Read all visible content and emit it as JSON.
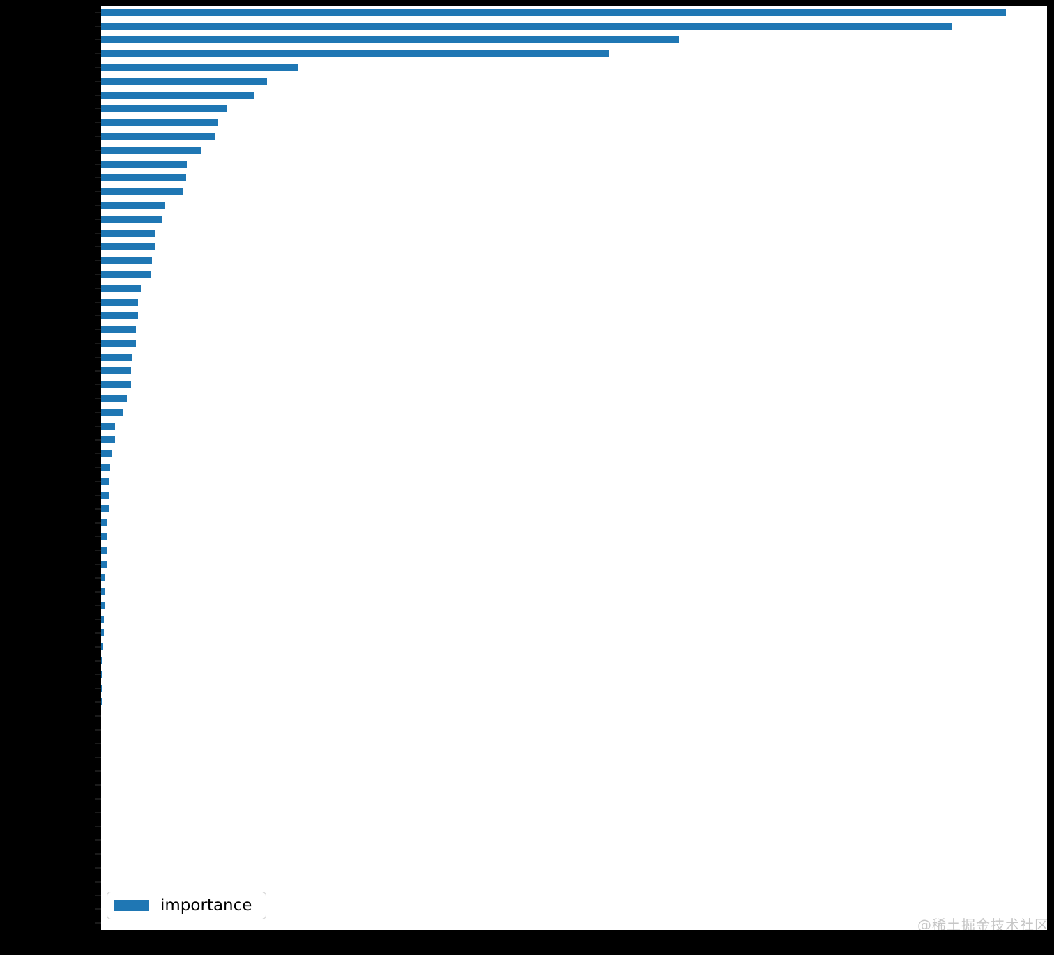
{
  "chart_data": {
    "type": "bar",
    "orientation": "horizontal",
    "title": "",
    "xlabel": "",
    "ylabel": "",
    "legend": [
      "importance"
    ],
    "legend_position": "lower left",
    "grid": false,
    "y_tick_labels_visible": false,
    "x_tick_labels_visible": false,
    "xlim": [
      0,
      1.0
    ],
    "n_bars": 67,
    "color": "#1f77b4",
    "values": [
      0.9565,
      0.8998,
      0.6109,
      0.5365,
      0.2085,
      0.1754,
      0.1614,
      0.1334,
      0.1238,
      0.1201,
      0.1054,
      0.0906,
      0.0899,
      0.0862,
      0.0671,
      0.0641,
      0.0575,
      0.0567,
      0.0538,
      0.0531,
      0.042,
      0.0391,
      0.0391,
      0.0368,
      0.0368,
      0.0332,
      0.0317,
      0.0317,
      0.0273,
      0.0228,
      0.0147,
      0.0147,
      0.0118,
      0.0096,
      0.0088,
      0.0081,
      0.0081,
      0.0066,
      0.0066,
      0.0059,
      0.0059,
      0.0037,
      0.0037,
      0.0037,
      0.0029,
      0.0029,
      0.0022,
      0.0015,
      0.0015,
      0.0007,
      0.0007,
      0,
      0,
      0,
      0,
      0,
      0,
      0,
      0,
      0,
      0,
      0,
      0,
      0,
      0,
      0,
      0
    ]
  },
  "watermark": {
    "text": "@稀土掘金技术社区",
    "color": "#c6c6c6"
  }
}
